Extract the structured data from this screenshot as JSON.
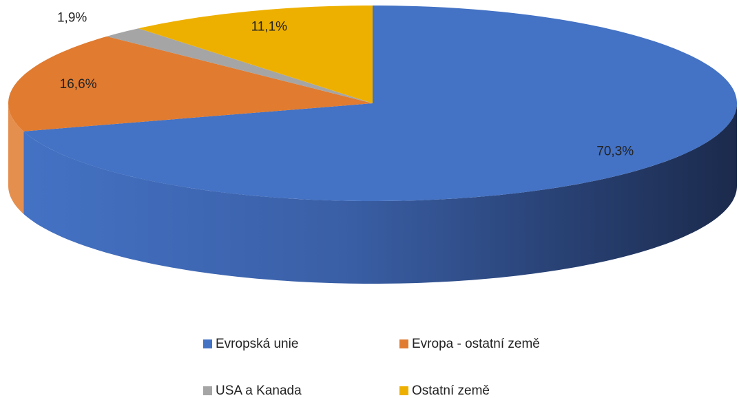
{
  "chart_data": {
    "type": "pie3d",
    "categories": [
      "Evropská unie",
      "Evropa - ostatní země",
      "USA a Kanada",
      "Ostatní země"
    ],
    "values": [
      70.3,
      16.6,
      1.9,
      11.1
    ],
    "value_labels": [
      "70,3%",
      "16,6%",
      "1,9%",
      "11,1%"
    ],
    "colors": [
      "#4472C4",
      "#E07B30",
      "#A5A5A5",
      "#EEB000"
    ],
    "legend": "bottom"
  }
}
